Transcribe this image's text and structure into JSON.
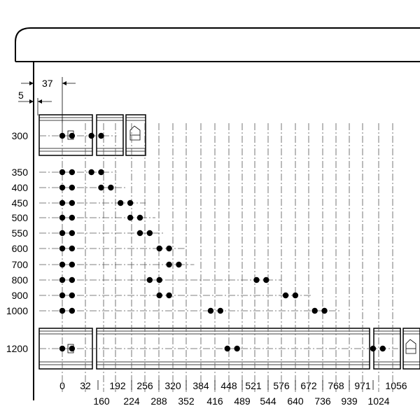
{
  "dimensions": {
    "offset_37": "37",
    "offset_5": "5"
  },
  "rows": [
    {
      "label": "300",
      "holes": [
        0,
        32,
        96,
        128
      ]
    },
    {
      "label": "350",
      "holes": [
        0,
        32,
        96,
        128
      ]
    },
    {
      "label": "400",
      "holes": [
        0,
        32,
        128,
        160
      ]
    },
    {
      "label": "450",
      "holes": [
        0,
        32,
        192,
        224
      ]
    },
    {
      "label": "500",
      "holes": [
        0,
        32,
        224,
        256
      ]
    },
    {
      "label": "550",
      "holes": [
        0,
        32,
        256,
        288
      ]
    },
    {
      "label": "600",
      "holes": [
        0,
        32,
        320,
        352
      ]
    },
    {
      "label": "700",
      "holes": [
        0,
        32,
        352,
        384
      ]
    },
    {
      "label": "800",
      "holes": [
        0,
        32,
        288,
        320,
        640,
        672
      ]
    },
    {
      "label": "900",
      "holes": [
        0,
        32,
        320,
        352,
        736,
        768
      ]
    },
    {
      "label": "1000",
      "holes": [
        0,
        32,
        489,
        521,
        832,
        864
      ]
    },
    {
      "label": "1200",
      "holes": [
        0,
        32,
        544,
        576,
        1024,
        1056
      ]
    }
  ],
  "bottom_labels_top": [
    "0",
    "32",
    "192",
    "256",
    "320",
    "384",
    "448",
    "521",
    "576",
    "672",
    "768",
    "971",
    "1056"
  ],
  "bottom_labels_bottom": [
    "160",
    "224",
    "288",
    "352",
    "416",
    "489",
    "544",
    "640",
    "736",
    "939",
    "1024"
  ]
}
